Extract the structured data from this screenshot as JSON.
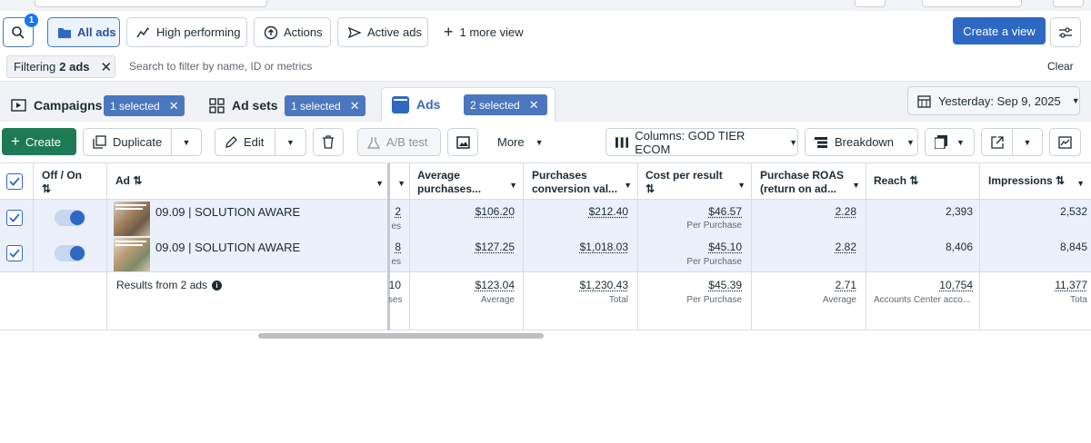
{
  "toolbar": {
    "search_badge": "1",
    "views": [
      {
        "label": "All ads"
      },
      {
        "label": "High performing"
      },
      {
        "label": "Actions"
      },
      {
        "label": "Active ads"
      },
      {
        "label": "1 more view"
      }
    ],
    "create_view": "Create a view"
  },
  "filter": {
    "chip_prefix": "Filtering",
    "chip_count": "2 ads",
    "placeholder": "Search to filter by name, ID or metrics",
    "clear": "Clear"
  },
  "levels": {
    "campaigns": {
      "label": "Campaigns",
      "selected": "1 selected"
    },
    "adsets": {
      "label": "Ad sets",
      "selected": "1 selected"
    },
    "ads": {
      "label": "Ads",
      "selected": "2 selected"
    }
  },
  "date_range": "Yesterday: Sep 9, 2025",
  "actions": {
    "create": "Create",
    "duplicate": "Duplicate",
    "edit": "Edit",
    "ab_test": "A/B test",
    "more": "More",
    "columns": "Columns: GOD TIER ECOM",
    "breakdown": "Breakdown"
  },
  "table": {
    "headers": {
      "offon": "Off / On",
      "ad": "Ad",
      "avg_purchases_1": "Average",
      "avg_purchases_2": "purchases...",
      "conv_1": "Purchases",
      "conv_2": "conversion val...",
      "cpr": "Cost per result",
      "roas_1": "Purchase ROAS",
      "roas_2": "(return on ad...",
      "reach": "Reach",
      "impressions": "Impressions"
    },
    "rows": [
      {
        "name": "09.09 | SOLUTION AWARE",
        "clipped_value": "2",
        "clipped_sub": "es",
        "avg_purchases": "$106.20",
        "conversion_value": "$212.40",
        "cost_per_result": "$46.57",
        "cpr_sub": "Per Purchase",
        "roas": "2.28",
        "reach": "2,393",
        "impressions": "2,532"
      },
      {
        "name": "09.09 | SOLUTION AWARE",
        "clipped_value": "8",
        "clipped_sub": "es",
        "avg_purchases": "$127.25",
        "conversion_value": "$1,018.03",
        "cost_per_result": "$45.10",
        "cpr_sub": "Per Purchase",
        "roas": "2.82",
        "reach": "8,406",
        "impressions": "8,845"
      }
    ],
    "summary": {
      "label": "Results from 2 ads",
      "clipped_value": "10",
      "clipped_sub": "ses",
      "avg_purchases": "$123.04",
      "avg_purchases_sub": "Average",
      "conversion_value": "$1,230.43",
      "conversion_value_sub": "Total",
      "cost_per_result": "$45.39",
      "cpr_sub": "Per Purchase",
      "roas": "2.71",
      "roas_sub": "Average",
      "reach": "10,754",
      "reach_sub": "Accounts Center acco...",
      "impressions": "11,377",
      "impressions_sub": "Tota"
    }
  },
  "colors": {
    "primary": "#1877f2",
    "selected_pill": "#4b77be",
    "create_button": "#1d7a55",
    "row_selected_bg": "#ebf0fa",
    "toggle_on": "#1877f2"
  }
}
